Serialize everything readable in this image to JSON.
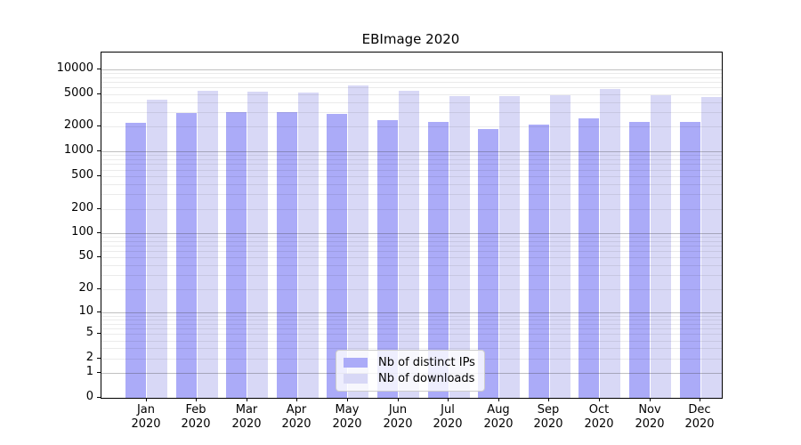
{
  "title": "EBImage 2020",
  "chart_data": {
    "type": "bar",
    "title": "EBImage 2020",
    "categories": [
      "Jan",
      "Feb",
      "Mar",
      "Apr",
      "May",
      "Jun",
      "Jul",
      "Aug",
      "Sep",
      "Oct",
      "Nov",
      "Dec"
    ],
    "category_year": "2020",
    "series": [
      {
        "name": "Nb of distinct IPs",
        "color": "#ababf8",
        "values": [
          2250,
          2950,
          3050,
          3000,
          2900,
          2400,
          2300,
          1900,
          2150,
          2550,
          2300,
          2300
        ]
      },
      {
        "name": "Nb of downloads",
        "color": "#d8d8f6",
        "values": [
          4300,
          5550,
          5400,
          5200,
          6350,
          5550,
          4750,
          4750,
          4800,
          5800,
          4800,
          4600
        ]
      }
    ],
    "yticks": [
      0,
      1,
      2,
      5,
      10,
      20,
      50,
      100,
      200,
      500,
      1000,
      2000,
      5000,
      10000
    ],
    "minor_tick_multiples": [
      3,
      4,
      6,
      7,
      8,
      9
    ],
    "scale": "log10(value+1)",
    "xlabel": "",
    "ylabel": "",
    "grid": "horizontal",
    "legend": {
      "position": "bottom-center",
      "entries": [
        "Nb of distinct IPs",
        "Nb of downloads"
      ]
    },
    "colors": {
      "major_grid": "#c3c3c3",
      "minor_grid": "#e8e8e8",
      "axis": "#000000",
      "background": "#ffffff"
    }
  }
}
